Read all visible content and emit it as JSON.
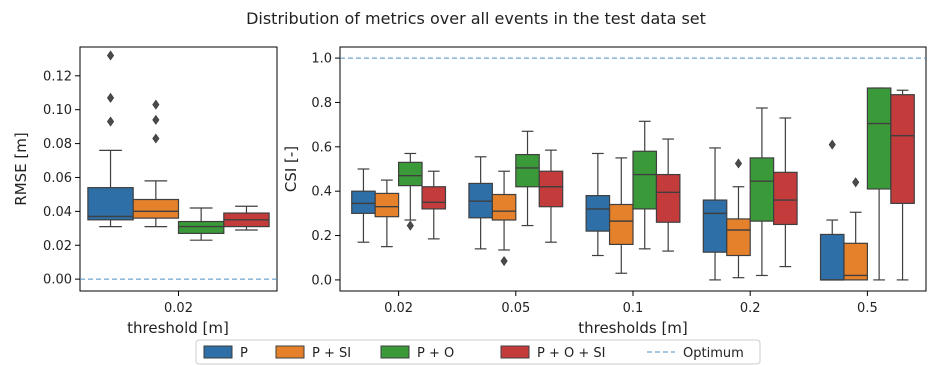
{
  "figure": {
    "title": "Distribution of metrics over all events in the test data set"
  },
  "legend": {
    "items": [
      {
        "label": "P",
        "color": "#2e6fa7",
        "kind": "box"
      },
      {
        "label": "P + SI",
        "color": "#e5812b",
        "kind": "box"
      },
      {
        "label": "P + O",
        "color": "#3a9a3a",
        "kind": "box"
      },
      {
        "label": "P + O + SI",
        "color": "#c43b3c",
        "kind": "box"
      },
      {
        "label": "Optimum",
        "color": "#4f8fc0",
        "kind": "dashed-line"
      }
    ]
  },
  "chart_data": [
    {
      "type": "box",
      "xlabel": "threshold [m]",
      "ylabel": "RMSE [m]",
      "categories": [
        "0.02"
      ],
      "ylim": [
        -0.007,
        0.137
      ],
      "yticks": [
        0.0,
        0.02,
        0.04,
        0.06,
        0.08,
        0.1,
        0.12
      ],
      "ytick_labels": [
        "0.00",
        "0.02",
        "0.04",
        "0.06",
        "0.08",
        "0.10",
        "0.12"
      ],
      "reference_line": {
        "name": "Optimum",
        "y": 0.0
      },
      "grid": false,
      "series": [
        {
          "name": "P",
          "color": "#2e6fa7",
          "boxes": [
            {
              "whislo": 0.031,
              "q1": 0.035,
              "med": 0.037,
              "q3": 0.054,
              "whishi": 0.076,
              "fliers": [
                0.093,
                0.107,
                0.132
              ]
            }
          ]
        },
        {
          "name": "P + SI",
          "color": "#e5812b",
          "boxes": [
            {
              "whislo": 0.031,
              "q1": 0.036,
              "med": 0.04,
              "q3": 0.047,
              "whishi": 0.058,
              "fliers": [
                0.083,
                0.094,
                0.103
              ]
            }
          ]
        },
        {
          "name": "P + O",
          "color": "#3a9a3a",
          "boxes": [
            {
              "whislo": 0.023,
              "q1": 0.027,
              "med": 0.031,
              "q3": 0.034,
              "whishi": 0.042,
              "fliers": []
            }
          ]
        },
        {
          "name": "P + O + SI",
          "color": "#c43b3c",
          "boxes": [
            {
              "whislo": 0.029,
              "q1": 0.031,
              "med": 0.035,
              "q3": 0.039,
              "whishi": 0.043,
              "fliers": []
            }
          ]
        }
      ]
    },
    {
      "type": "box",
      "xlabel": "thresholds [m]",
      "ylabel": "CSI [-]",
      "categories": [
        "0.02",
        "0.05",
        "0.1",
        "0.2",
        "0.5"
      ],
      "ylim": [
        -0.05,
        1.05
      ],
      "yticks": [
        0.0,
        0.2,
        0.4,
        0.6,
        0.8,
        1.0
      ],
      "ytick_labels": [
        "0.0",
        "0.2",
        "0.4",
        "0.6",
        "0.8",
        "1.0"
      ],
      "reference_line": {
        "name": "Optimum",
        "y": 1.0
      },
      "grid": false,
      "series": [
        {
          "name": "P",
          "color": "#2e6fa7",
          "boxes": [
            {
              "whislo": 0.17,
              "q1": 0.3,
              "med": 0.345,
              "q3": 0.4,
              "whishi": 0.5,
              "fliers": []
            },
            {
              "whislo": 0.14,
              "q1": 0.28,
              "med": 0.355,
              "q3": 0.435,
              "whishi": 0.555,
              "fliers": []
            },
            {
              "whislo": 0.11,
              "q1": 0.22,
              "med": 0.32,
              "q3": 0.38,
              "whishi": 0.57,
              "fliers": []
            },
            {
              "whislo": 0.0,
              "q1": 0.125,
              "med": 0.3,
              "q3": 0.36,
              "whishi": 0.595,
              "fliers": []
            },
            {
              "whislo": 0.0,
              "q1": 0.0,
              "med": 0.0,
              "q3": 0.205,
              "whishi": 0.27,
              "fliers": [
                0.61
              ]
            }
          ]
        },
        {
          "name": "P + SI",
          "color": "#e5812b",
          "boxes": [
            {
              "whislo": 0.15,
              "q1": 0.285,
              "med": 0.33,
              "q3": 0.39,
              "whishi": 0.45,
              "fliers": []
            },
            {
              "whislo": 0.135,
              "q1": 0.27,
              "med": 0.31,
              "q3": 0.385,
              "whishi": 0.49,
              "fliers": [
                0.085
              ]
            },
            {
              "whislo": 0.03,
              "q1": 0.16,
              "med": 0.265,
              "q3": 0.34,
              "whishi": 0.55,
              "fliers": []
            },
            {
              "whislo": 0.01,
              "q1": 0.11,
              "med": 0.225,
              "q3": 0.275,
              "whishi": 0.42,
              "fliers": [
                0.525
              ]
            },
            {
              "whislo": 0.0,
              "q1": 0.0,
              "med": 0.02,
              "q3": 0.165,
              "whishi": 0.305,
              "fliers": [
                0.44
              ]
            }
          ]
        },
        {
          "name": "P + O",
          "color": "#3a9a3a",
          "boxes": [
            {
              "whislo": 0.27,
              "q1": 0.425,
              "med": 0.47,
              "q3": 0.53,
              "whishi": 0.57,
              "fliers": [
                0.245
              ]
            },
            {
              "whislo": 0.245,
              "q1": 0.42,
              "med": 0.505,
              "q3": 0.565,
              "whishi": 0.67,
              "fliers": []
            },
            {
              "whislo": 0.14,
              "q1": 0.32,
              "med": 0.475,
              "q3": 0.58,
              "whishi": 0.715,
              "fliers": []
            },
            {
              "whislo": 0.02,
              "q1": 0.265,
              "med": 0.445,
              "q3": 0.55,
              "whishi": 0.775,
              "fliers": []
            },
            {
              "whislo": 0.0,
              "q1": 0.41,
              "med": 0.705,
              "q3": 0.865,
              "whishi": 0.865,
              "fliers": []
            }
          ]
        },
        {
          "name": "P + O + SI",
          "color": "#c43b3c",
          "boxes": [
            {
              "whislo": 0.185,
              "q1": 0.32,
              "med": 0.35,
              "q3": 0.42,
              "whishi": 0.49,
              "fliers": []
            },
            {
              "whislo": 0.17,
              "q1": 0.33,
              "med": 0.42,
              "q3": 0.49,
              "whishi": 0.585,
              "fliers": []
            },
            {
              "whislo": 0.13,
              "q1": 0.26,
              "med": 0.395,
              "q3": 0.475,
              "whishi": 0.635,
              "fliers": []
            },
            {
              "whislo": 0.06,
              "q1": 0.25,
              "med": 0.36,
              "q3": 0.485,
              "whishi": 0.73,
              "fliers": []
            },
            {
              "whislo": 0.0,
              "q1": 0.345,
              "med": 0.65,
              "q3": 0.835,
              "whishi": 0.855,
              "fliers": []
            }
          ]
        }
      ]
    }
  ]
}
